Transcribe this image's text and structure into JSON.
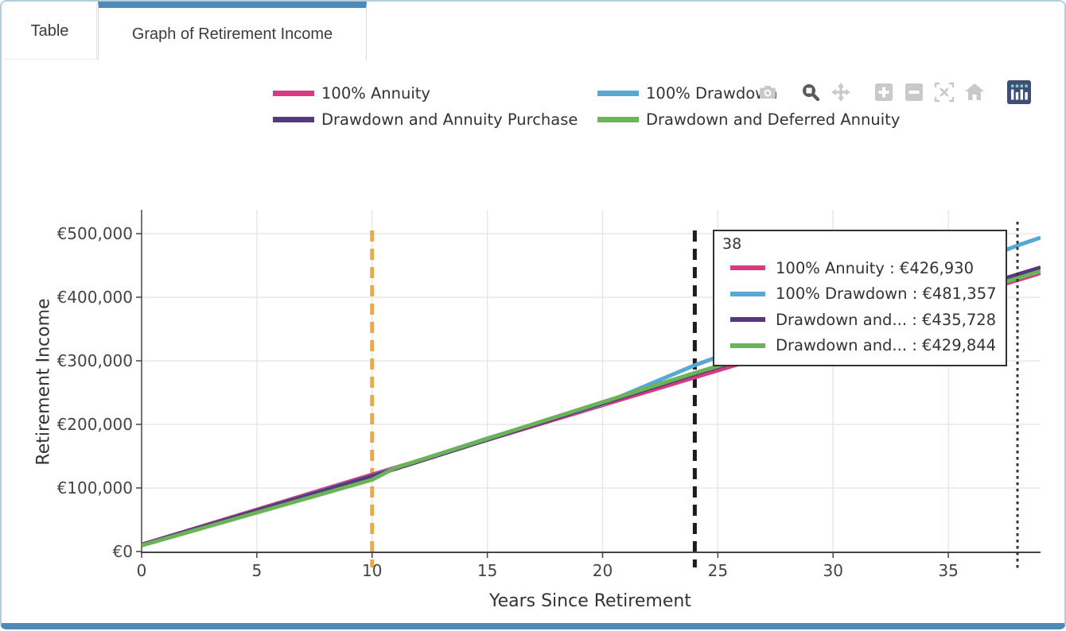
{
  "tabs": [
    {
      "label": "Table",
      "active": false
    },
    {
      "label": "Graph of Retirement Income",
      "active": true
    }
  ],
  "accent_color": "#4d8ab8",
  "modebar": {
    "buttons": [
      {
        "name": "camera-icon",
        "state": "normal"
      },
      {
        "name": "zoom-icon",
        "state": "active-tool"
      },
      {
        "name": "pan-icon",
        "state": "normal"
      },
      {
        "name": "zoom-in-icon",
        "state": "normal"
      },
      {
        "name": "zoom-out-icon",
        "state": "normal"
      },
      {
        "name": "autoscale-icon",
        "state": "normal"
      },
      {
        "name": "reset-home-icon",
        "state": "normal"
      },
      {
        "name": "hover-compare-icon",
        "state": "selected"
      }
    ]
  },
  "chart_data": {
    "type": "line",
    "xlabel": "Years Since Retirement",
    "ylabel": "Retirement Income",
    "x_range": [
      0,
      39
    ],
    "y_range": [
      0,
      537500
    ],
    "grid": true,
    "legend_position": "top",
    "x_ticks": {
      "values": [
        0,
        5,
        10,
        15,
        20,
        25,
        30,
        35
      ],
      "labels": [
        "0",
        "5",
        "10",
        "15",
        "20",
        "25",
        "30",
        "35"
      ]
    },
    "y_ticks": {
      "values": [
        0,
        100000,
        200000,
        300000,
        400000,
        500000
      ],
      "labels": [
        "€0",
        "€100,000",
        "€200,000",
        "€300,000",
        "€400,000",
        "€500,000"
      ]
    },
    "series": [
      {
        "name": "100% Annuity",
        "color": "#d63a80",
        "points": [
          [
            0,
            11000
          ],
          [
            10,
            121000
          ],
          [
            24,
            274000
          ],
          [
            38,
            426930
          ],
          [
            39,
            437900
          ]
        ]
      },
      {
        "name": "100% Drawdown",
        "color": "#56a8d5",
        "points": [
          [
            0,
            10500
          ],
          [
            10,
            119000
          ],
          [
            15,
            178000
          ],
          [
            20,
            232000
          ],
          [
            24,
            293000
          ],
          [
            30,
            372000
          ],
          [
            38,
            481357
          ],
          [
            39,
            493700
          ]
        ]
      },
      {
        "name": "Drawdown and Annuity Purchase",
        "color": "#55397f",
        "points": [
          [
            0,
            10500
          ],
          [
            10,
            118500
          ],
          [
            24,
            279000
          ],
          [
            38,
            435728
          ],
          [
            39,
            446900
          ]
        ]
      },
      {
        "name": "Drawdown and Deferred Annuity",
        "color": "#6ab356",
        "points": [
          [
            0,
            9500
          ],
          [
            10,
            113000
          ],
          [
            11,
            131500
          ],
          [
            24,
            281000
          ],
          [
            38,
            429844
          ],
          [
            39,
            440900
          ]
        ]
      }
    ],
    "reference_lines": [
      {
        "axis": "x",
        "value": 10,
        "style": "dashed",
        "color": "#f2a93b",
        "width": 5,
        "layer": "below"
      },
      {
        "axis": "x",
        "value": 24,
        "style": "dashed",
        "color": "#1c1c1c",
        "width": 5,
        "layer": "below"
      },
      {
        "axis": "x",
        "value": 38,
        "style": "dotted",
        "color": "#333333",
        "width": 3,
        "layer": "above"
      }
    ]
  },
  "tooltip": {
    "title": "38",
    "rows": [
      {
        "text": "100% Annuity : €426,930",
        "value": "€426,930"
      },
      {
        "text": "100% Drawdown : €481,357",
        "value": "€481,357"
      },
      {
        "text": "Drawdown and... : €435,728",
        "value": "€435,728"
      },
      {
        "text": "Drawdown and... : €429,844",
        "value": "€429,844"
      }
    ]
  }
}
